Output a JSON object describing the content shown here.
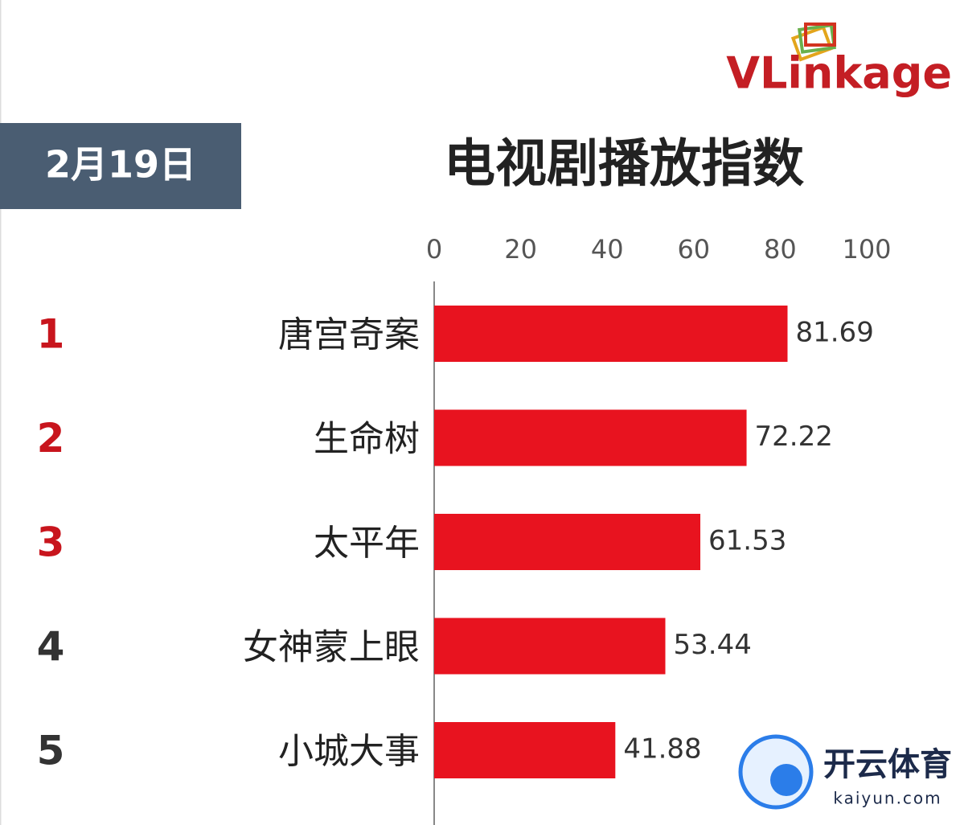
{
  "chart_data": {
    "type": "bar",
    "orientation": "horizontal",
    "title": "电视剧播放指数",
    "date": "2月19日",
    "brand": "VLinkage",
    "watermark": {
      "name": "开云体育",
      "site": "kaiyun.com"
    },
    "ranks": [
      "1",
      "2",
      "3",
      "4",
      "5"
    ],
    "rank_colors": [
      "#c8151d",
      "#c8151d",
      "#c8151d",
      "#333333",
      "#333333"
    ],
    "categories": [
      "唐宫奇案",
      "生命树",
      "太平年",
      "女神蒙上眼",
      "小城大事"
    ],
    "values": [
      81.69,
      72.22,
      61.53,
      53.44,
      41.88
    ],
    "color": "#e8131f",
    "xlim": [
      0,
      100
    ],
    "xticks": [
      0,
      20,
      40,
      60,
      80,
      100
    ],
    "grid": false
  }
}
